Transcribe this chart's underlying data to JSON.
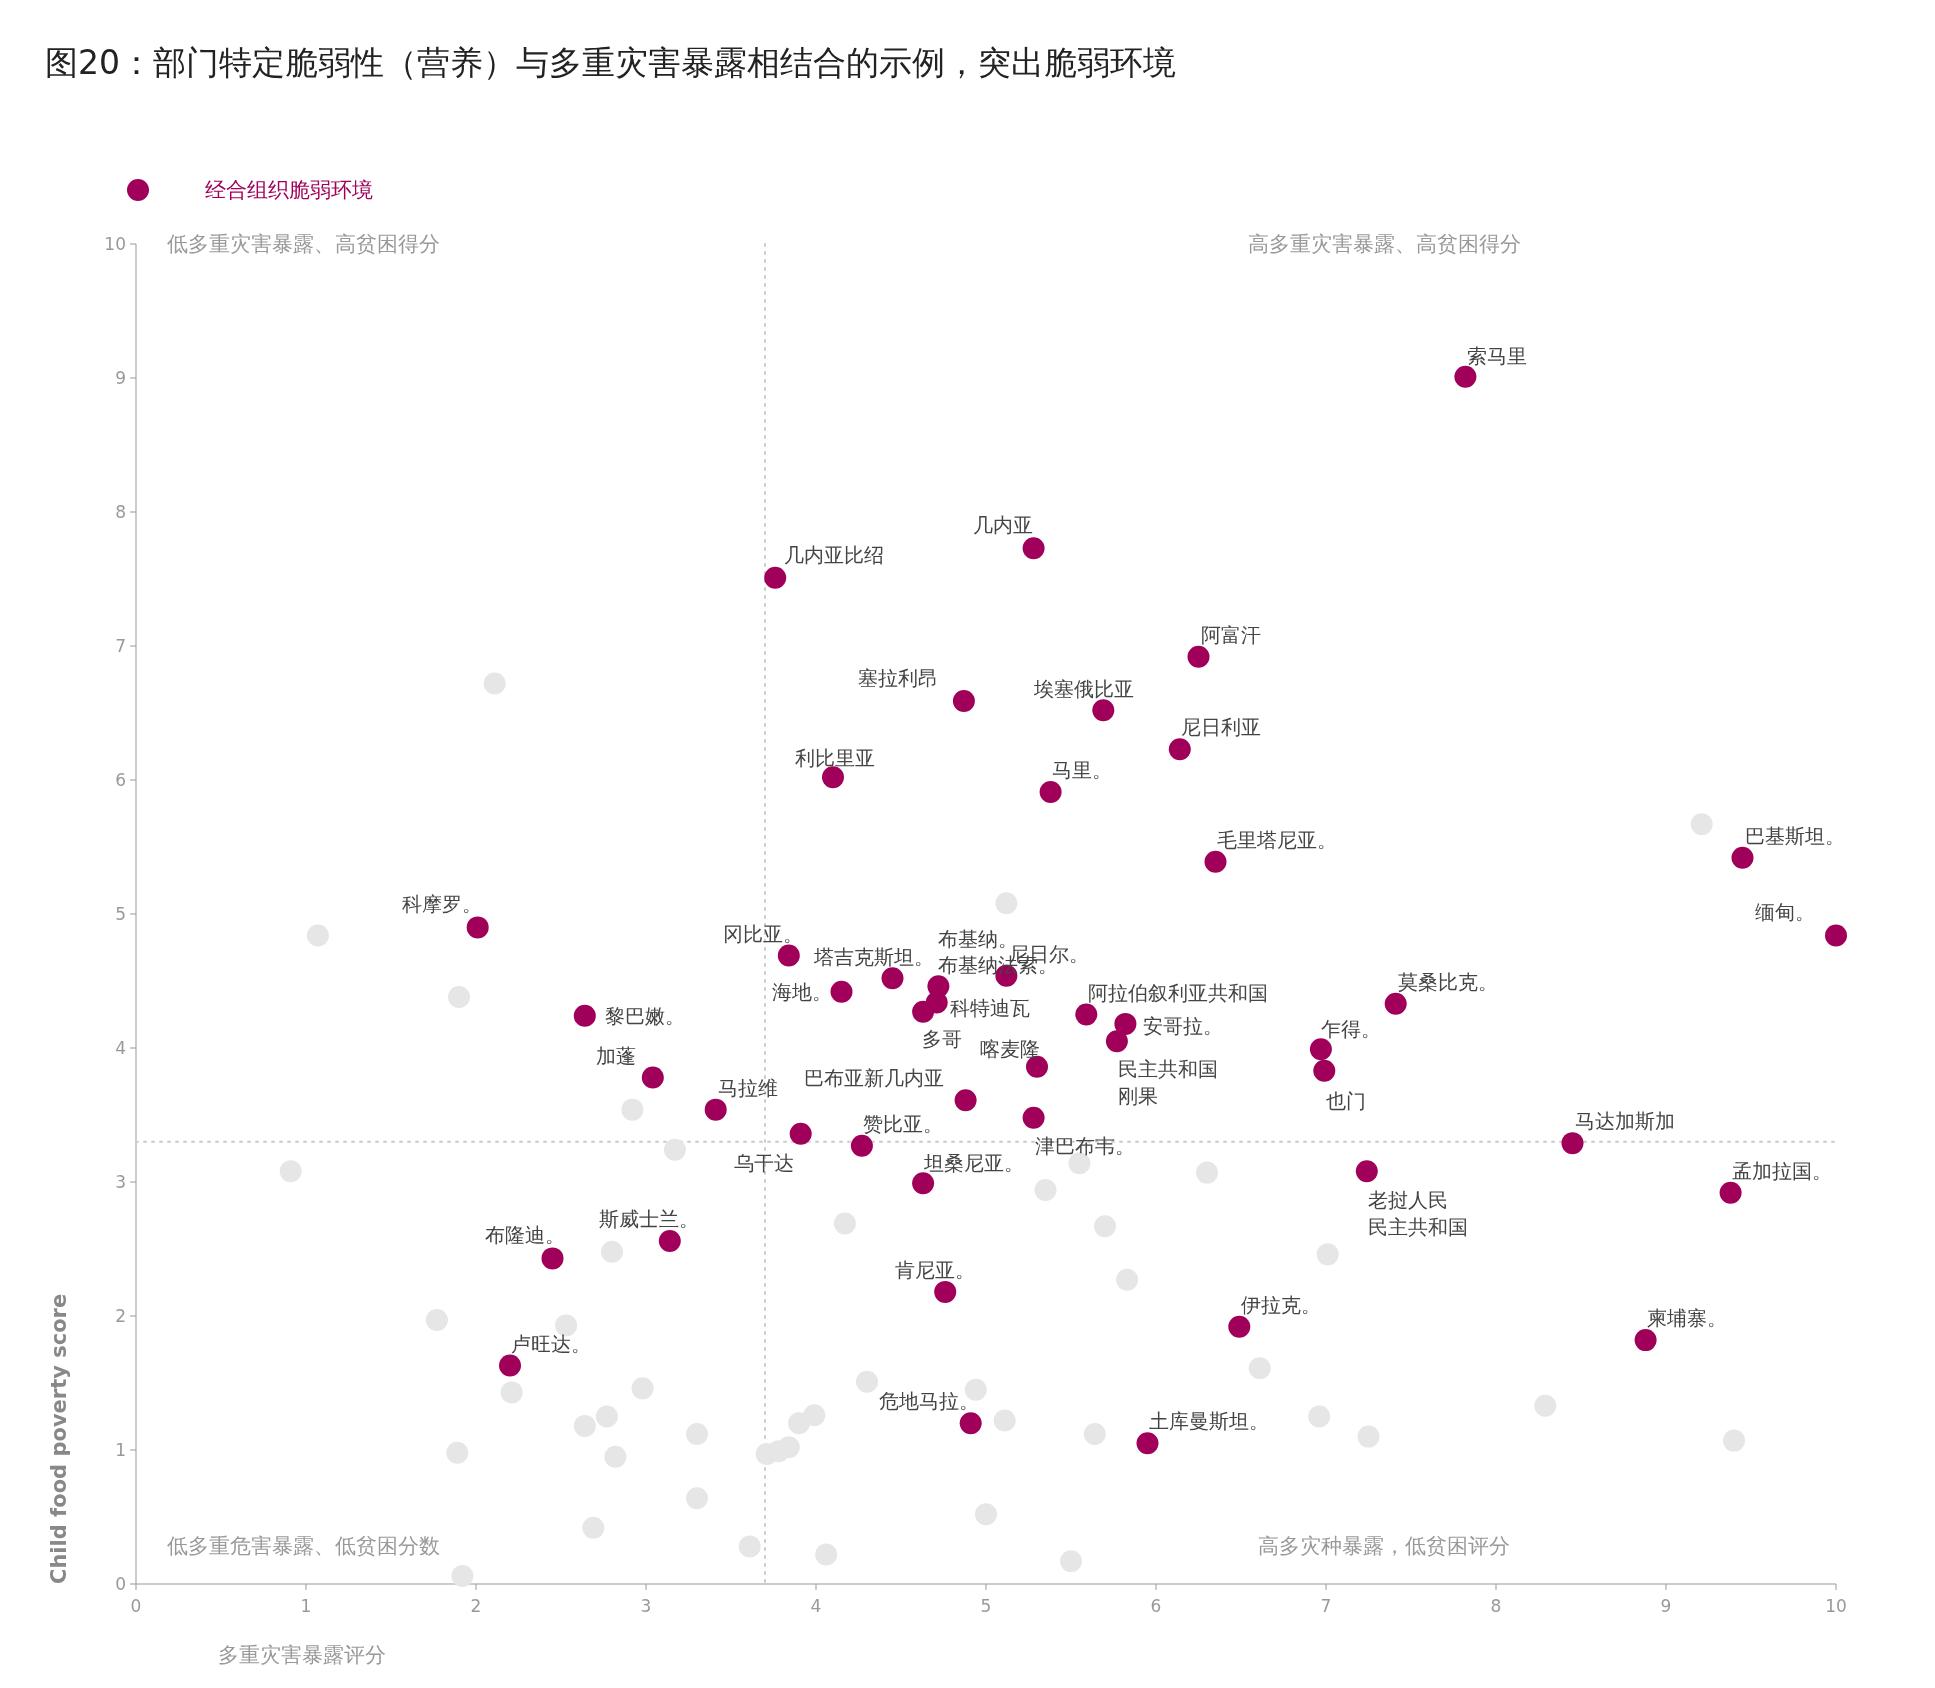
{
  "chart_data": {
    "type": "scatter",
    "title": "图20：部门特定脆弱性（营养）与多重灾害暴露相结合的示例，突出脆弱环境",
    "xlabel": "多重灾害暴露评分",
    "ylabel": "Child food poverty score",
    "xlim": [
      0,
      10
    ],
    "ylim": [
      0,
      10
    ],
    "xticks": [
      0,
      1,
      2,
      3,
      4,
      5,
      6,
      7,
      8,
      9,
      10
    ],
    "yticks": [
      0,
      1,
      2,
      3,
      4,
      5,
      6,
      7,
      8,
      9,
      10
    ],
    "grid": false,
    "legend": "top left",
    "marker": "circle",
    "ref_lines": [
      {
        "axis": "x",
        "value": 3.7,
        "label": null,
        "color": "#cccccc",
        "line_style": "dotted"
      },
      {
        "axis": "y",
        "value": 3.3,
        "label": null,
        "color": "#cccccc",
        "line_style": "dotted"
      }
    ],
    "series": [
      {
        "color": "#e6e6e6",
        "x": [
          2.11,
          1.07,
          1.9,
          0.91,
          2.92,
          3.17,
          1.77,
          2.53,
          2.21,
          2.8,
          1.89,
          2.64,
          2.77,
          2.98,
          2.82,
          3.3,
          2.69,
          3.3,
          3.61,
          1.92,
          3.71,
          3.78,
          3.84,
          3.9,
          3.99,
          4.06,
          4.17,
          4.3,
          4.94,
          5.11,
          5.0,
          5.12,
          5.35,
          5.55,
          5.64,
          5.7,
          5.5,
          5.83,
          6.3,
          6.61,
          7.01,
          6.96,
          7.25,
          8.29,
          9.21,
          9.4
        ],
        "values": [
          6.72,
          4.84,
          4.38,
          3.08,
          3.54,
          3.24,
          1.97,
          1.93,
          1.43,
          2.48,
          0.98,
          1.18,
          1.25,
          1.46,
          0.95,
          1.12,
          0.42,
          0.64,
          0.28,
          0.06,
          0.97,
          0.99,
          1.02,
          1.2,
          1.26,
          0.22,
          2.69,
          1.51,
          1.45,
          1.22,
          0.52,
          5.08,
          2.94,
          3.14,
          1.12,
          2.67,
          0.17,
          2.27,
          3.07,
          1.61,
          2.46,
          1.25,
          1.1,
          1.33,
          5.67,
          1.07
        ]
      },
      {
        "name": "经合组织脆弱环境",
        "color": "#a0005a",
        "x": [
          7.82,
          5.28,
          3.76,
          6.25,
          4.87,
          5.69,
          6.14,
          4.1,
          5.38,
          6.35,
          9.45,
          10.0,
          2.01,
          3.84,
          4.45,
          4.15,
          5.12,
          4.72,
          4.71,
          4.63,
          5.59,
          5.82,
          5.77,
          6.97,
          6.99,
          7.41,
          2.64,
          3.04,
          5.3,
          3.41,
          4.88,
          5.28,
          3.91,
          4.27,
          4.63,
          8.45,
          9.38,
          7.24,
          3.14,
          2.45,
          4.76,
          6.49,
          8.88,
          2.2,
          4.91,
          5.95
        ],
        "values": [
          9.01,
          7.73,
          7.51,
          6.92,
          6.59,
          6.52,
          6.23,
          6.02,
          5.91,
          5.39,
          5.42,
          4.84,
          4.9,
          4.69,
          4.52,
          4.42,
          4.54,
          4.46,
          4.34,
          4.27,
          4.25,
          4.18,
          4.05,
          3.99,
          3.83,
          4.33,
          4.24,
          3.78,
          3.86,
          3.54,
          3.61,
          3.48,
          3.36,
          3.27,
          2.99,
          3.29,
          2.92,
          3.08,
          2.56,
          2.43,
          2.18,
          1.92,
          1.82,
          1.63,
          1.2,
          1.05
        ]
      }
    ],
    "annotations": [
      "低多重灾害暴露、高贫困得分",
      "高多重灾害暴露、高贫困得分",
      "低多重危害暴露、低贫困分数",
      "高多灾种暴露，低贫困评分",
      {
        "text": "索马里",
        "x": 7.82,
        "y": 9.01
      },
      {
        "text": "几内亚",
        "x": 5.28,
        "y": 7.73
      },
      {
        "text": "几内亚比绍",
        "x": 3.76,
        "y": 7.51
      },
      {
        "text": "阿富汗",
        "x": 6.25,
        "y": 6.92
      },
      {
        "text": "塞拉利昂",
        "x": 4.87,
        "y": 6.59
      },
      {
        "text": "埃塞俄比亚",
        "x": 5.69,
        "y": 6.52
      },
      {
        "text": "尼日利亚",
        "x": 6.14,
        "y": 6.23
      },
      {
        "text": "利比里亚",
        "x": 4.1,
        "y": 6.02
      },
      {
        "text": "马里。",
        "x": 5.38,
        "y": 5.91
      },
      {
        "text": "毛里塔尼亚。",
        "x": 6.35,
        "y": 5.39
      },
      {
        "text": "巴基斯坦。",
        "x": 9.45,
        "y": 5.42
      },
      {
        "text": "缅甸。",
        "x": 10.0,
        "y": 4.84
      },
      {
        "text": "科摩罗。",
        "x": 2.01,
        "y": 4.9
      },
      {
        "text": "冈比亚。",
        "x": 3.84,
        "y": 4.69
      },
      {
        "text": "塔吉克斯坦。",
        "x": 4.45,
        "y": 4.52
      },
      {
        "text": "海地。",
        "x": 4.15,
        "y": 4.42
      },
      {
        "text": "尼日尔。",
        "x": 5.12,
        "y": 4.54
      },
      {
        "text": "布基纳。",
        "x": 4.72,
        "y": 4.46
      },
      {
        "text": "布基纳法索。",
        "x": 4.72,
        "y": 4.46
      },
      {
        "text": "科特迪瓦",
        "x": 4.71,
        "y": 4.34
      },
      {
        "text": "多哥",
        "x": 4.63,
        "y": 4.27
      },
      {
        "text": "阿拉伯叙利亚共和国",
        "x": 5.59,
        "y": 4.25
      },
      {
        "text": "安哥拉。",
        "x": 5.82,
        "y": 4.18
      },
      {
        "text": "民主共和国刚果",
        "x": 5.77,
        "y": 4.05
      },
      {
        "text": "乍得。",
        "x": 6.97,
        "y": 3.99
      },
      {
        "text": "也门",
        "x": 6.99,
        "y": 3.83
      },
      {
        "text": "莫桑比克。",
        "x": 7.41,
        "y": 4.33
      },
      {
        "text": "黎巴嫩。",
        "x": 2.64,
        "y": 4.24
      },
      {
        "text": "加蓬",
        "x": 3.04,
        "y": 3.78
      },
      {
        "text": "喀麦隆",
        "x": 5.3,
        "y": 3.86
      },
      {
        "text": "马拉维",
        "x": 3.41,
        "y": 3.54
      },
      {
        "text": "巴布亚新几内亚",
        "x": 4.88,
        "y": 3.61
      },
      {
        "text": "津巴布韦。",
        "x": 5.28,
        "y": 3.48
      },
      {
        "text": "乌干达",
        "x": 3.91,
        "y": 3.36
      },
      {
        "text": "赞比亚。",
        "x": 4.27,
        "y": 3.27
      },
      {
        "text": "坦桑尼亚。",
        "x": 4.63,
        "y": 2.99
      },
      {
        "text": "马达加斯加",
        "x": 8.45,
        "y": 3.29
      },
      {
        "text": "孟加拉国。",
        "x": 9.38,
        "y": 2.92
      },
      {
        "text": "老挝人民民主共和国",
        "x": 7.24,
        "y": 3.08
      },
      {
        "text": "斯威士兰。",
        "x": 3.14,
        "y": 2.56
      },
      {
        "text": "布隆迪。",
        "x": 2.45,
        "y": 2.43
      },
      {
        "text": "肯尼亚。",
        "x": 4.76,
        "y": 2.18
      },
      {
        "text": "伊拉克。",
        "x": 6.49,
        "y": 1.92
      },
      {
        "text": "柬埔寨。",
        "x": 8.88,
        "y": 1.82
      },
      {
        "text": "卢旺达。",
        "x": 2.2,
        "y": 1.63
      },
      {
        "text": "危地马拉。",
        "x": 4.91,
        "y": 1.2
      },
      {
        "text": "土库曼斯坦。",
        "x": 5.95,
        "y": 1.05
      }
    ]
  }
}
